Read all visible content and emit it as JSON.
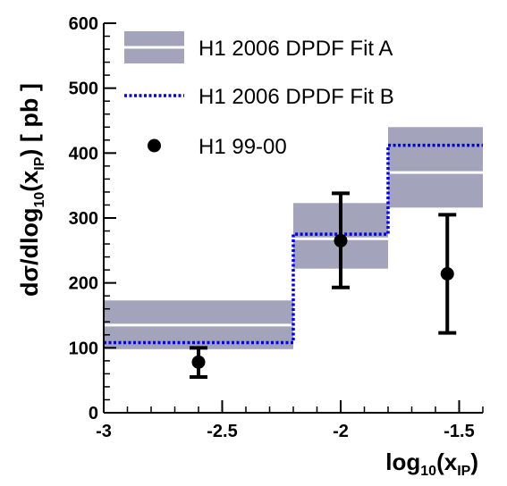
{
  "chart_data": {
    "type": "line",
    "xlabel": {
      "base": "log",
      "sub1": "10",
      "mid": "(x",
      "sub2": "IP",
      "end": ")"
    },
    "ylabel": {
      "p1": "dσ/dlog",
      "sub1": "10",
      "p2": "(x",
      "sub2": "IP",
      "p3": ") [ pb ]"
    },
    "xlim": [
      -3,
      -1.4
    ],
    "ylim": [
      0,
      600
    ],
    "x_ticks": [
      -3,
      -2.5,
      -2,
      -1.5
    ],
    "x_tick_labels": [
      "-3",
      "-2.5",
      "-2",
      "-1.5"
    ],
    "y_ticks": [
      0,
      100,
      200,
      300,
      400,
      500,
      600
    ],
    "y_tick_labels": [
      "0",
      "100",
      "200",
      "300",
      "400",
      "500",
      "600"
    ],
    "legend_position": "top-left",
    "series": [
      {
        "name": "H1 2006 DPDF Fit A",
        "kind": "band",
        "color": "#a3a3bb",
        "central_color": "#ffffff",
        "bins": [
          {
            "x_low": -3.0,
            "x_high": -2.2,
            "central": 135,
            "low": 98,
            "high": 173
          },
          {
            "x_low": -2.2,
            "x_high": -1.8,
            "central": 268,
            "low": 222,
            "high": 323
          },
          {
            "x_low": -1.8,
            "x_high": -1.4,
            "central": 370,
            "low": 316,
            "high": 440
          }
        ]
      },
      {
        "name": "H1 2006 DPDF Fit B",
        "kind": "step",
        "color": "#0000ee",
        "bins": [
          {
            "x_low": -3.0,
            "x_high": -2.2,
            "value": 108
          },
          {
            "x_low": -2.2,
            "x_high": -1.8,
            "value": 275
          },
          {
            "x_low": -1.8,
            "x_high": -1.4,
            "value": 412
          }
        ]
      },
      {
        "name": "H1 99-00",
        "kind": "points",
        "color": "#000000",
        "points": [
          {
            "x": -2.6,
            "y": 78,
            "err_low": 55,
            "err_high": 100
          },
          {
            "x": -2.0,
            "y": 265,
            "err_low": 193,
            "err_high": 338
          },
          {
            "x": -1.55,
            "y": 214,
            "err_low": 123,
            "err_high": 305
          }
        ]
      }
    ]
  }
}
